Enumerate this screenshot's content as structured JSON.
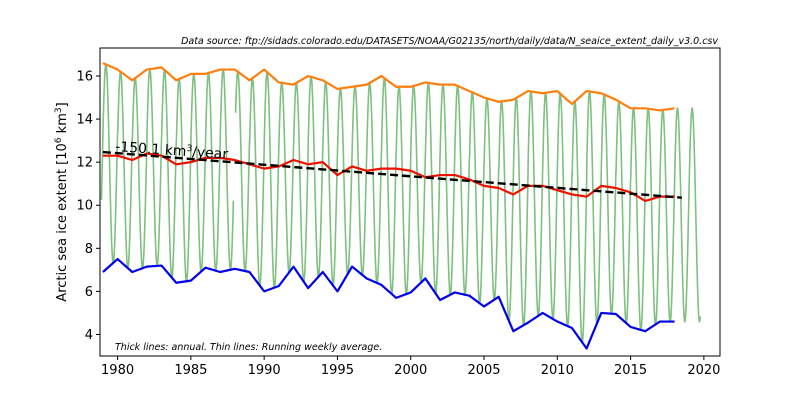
{
  "chart_data": {
    "type": "line",
    "source_note": "Data source: ftp://sidads.colorado.edu/DATASETS/NOAA/G02135/north/daily/data/N_seaice_extent_daily_v3.0.csv",
    "annotation": "Thick lines: annual. Thin lines: Running weekly average.",
    "trend_label": "-150.1 km",
    "trend_label_sup": "3",
    "trend_label_tail": "/year",
    "ylabel_main": "Arctic sea ice extent [10",
    "ylabel_sup1": "6",
    "ylabel_mid": " km",
    "ylabel_sup2": "3",
    "ylabel_end": "]",
    "xlim": [
      1978.8,
      2021.1
    ],
    "ylim": [
      3.0,
      17.3
    ],
    "xticks": [
      1980,
      1985,
      1990,
      1995,
      2000,
      2005,
      2010,
      2015,
      2020
    ],
    "yticks": [
      4,
      6,
      8,
      10,
      12,
      14,
      16
    ],
    "colors": {
      "max": "#ff7f0e",
      "mean": "#ee1100",
      "min": "#0000ee",
      "weekly": "#7fbf7f",
      "trend": "#000000"
    },
    "series": [
      {
        "role": "annual-max",
        "x": [
          1979,
          1980,
          1981,
          1982,
          1983,
          1984,
          1985,
          1986,
          1987,
          1988,
          1989,
          1990,
          1991,
          1992,
          1993,
          1994,
          1995,
          1996,
          1997,
          1998,
          1999,
          2000,
          2001,
          2002,
          2003,
          2004,
          2005,
          2006,
          2007,
          2008,
          2009,
          2010,
          2011,
          2012,
          2013,
          2014,
          2015,
          2016,
          2017,
          2018
        ],
        "y": [
          16.6,
          16.3,
          15.8,
          16.3,
          16.4,
          15.8,
          16.1,
          16.1,
          16.3,
          16.3,
          15.8,
          16.3,
          15.7,
          15.6,
          16.0,
          15.8,
          15.4,
          15.5,
          15.6,
          16.0,
          15.5,
          15.5,
          15.7,
          15.6,
          15.6,
          15.3,
          15.0,
          14.8,
          14.9,
          15.3,
          15.2,
          15.3,
          14.7,
          15.3,
          15.2,
          14.9,
          14.5,
          14.5,
          14.4,
          14.5
        ]
      },
      {
        "role": "annual-mean",
        "x": [
          1979,
          1980,
          1981,
          1982,
          1983,
          1984,
          1985,
          1986,
          1987,
          1988,
          1989,
          1990,
          1991,
          1992,
          1993,
          1994,
          1995,
          1996,
          1997,
          1998,
          1999,
          2000,
          2001,
          2002,
          2003,
          2004,
          2005,
          2006,
          2007,
          2008,
          2009,
          2010,
          2011,
          2012,
          2013,
          2014,
          2015,
          2016,
          2017,
          2018
        ],
        "y": [
          12.3,
          12.3,
          12.1,
          12.4,
          12.3,
          11.9,
          12.0,
          12.2,
          12.2,
          12.1,
          11.9,
          11.7,
          11.8,
          12.1,
          11.9,
          12.0,
          11.4,
          11.8,
          11.6,
          11.7,
          11.7,
          11.6,
          11.3,
          11.4,
          11.4,
          11.2,
          10.9,
          10.8,
          10.5,
          10.9,
          10.9,
          10.7,
          10.5,
          10.4,
          10.9,
          10.8,
          10.6,
          10.2,
          10.4,
          10.4
        ]
      },
      {
        "role": "annual-min",
        "x": [
          1979,
          1980,
          1981,
          1982,
          1983,
          1984,
          1985,
          1986,
          1987,
          1988,
          1989,
          1990,
          1991,
          1992,
          1993,
          1994,
          1995,
          1996,
          1997,
          1998,
          1999,
          2000,
          2001,
          2002,
          2003,
          2004,
          2005,
          2006,
          2007,
          2008,
          2009,
          2010,
          2011,
          2012,
          2013,
          2014,
          2015,
          2016,
          2017,
          2018
        ],
        "y": [
          6.9,
          7.5,
          6.9,
          7.15,
          7.2,
          6.4,
          6.5,
          7.1,
          6.9,
          7.05,
          6.9,
          6.0,
          6.25,
          7.15,
          6.15,
          6.9,
          6.0,
          7.15,
          6.6,
          6.3,
          5.7,
          5.95,
          6.6,
          5.6,
          5.95,
          5.8,
          5.3,
          5.75,
          4.15,
          4.55,
          5.0,
          4.6,
          4.3,
          3.35,
          5.0,
          4.95,
          4.35,
          4.15,
          4.6,
          4.6
        ]
      },
      {
        "role": "trend",
        "x": [
          1979,
          2018.5
        ],
        "y": [
          12.47,
          10.35
        ]
      }
    ],
    "weekly": {
      "start_year": 1978.9,
      "end_year": 2019.75,
      "gap": [
        1987.9,
        1988.05
      ]
    }
  }
}
